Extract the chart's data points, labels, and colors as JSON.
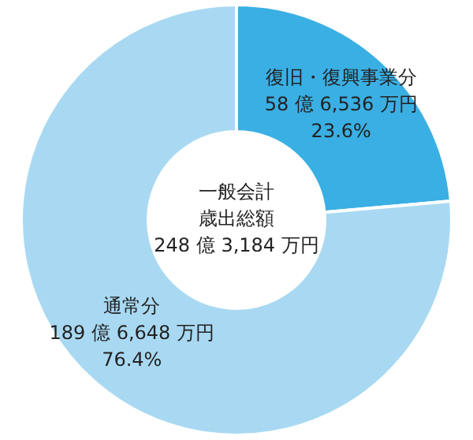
{
  "chart_data": {
    "type": "donut",
    "categories": [
      "復旧・復興事業分",
      "通常分"
    ],
    "values": [
      23.6,
      76.4
    ],
    "colors": [
      "#3aafe3",
      "#a9d9f2"
    ],
    "value_labels": [
      "58 億 6,536 万円\n23.6%",
      "189 億 6,648 万円\n76.4%"
    ],
    "annotations": [
      "一般会計",
      "歳出総額",
      "248 億 3,184 万円"
    ],
    "legend": false
  }
}
